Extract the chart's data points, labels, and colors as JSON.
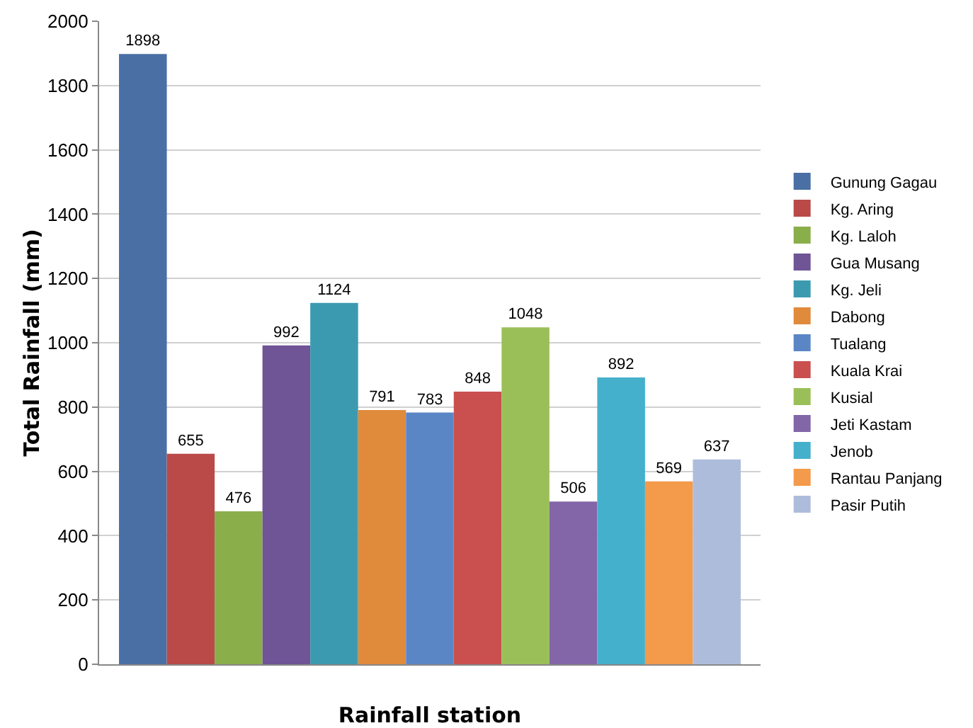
{
  "chart_data": {
    "type": "bar",
    "xlabel": "Rainfall station",
    "ylabel": "Total Rainfall (mm)",
    "categories": [
      null
    ],
    "series": [
      {
        "name": "Gunung Gagau",
        "color": "#4a6fa5",
        "values": [
          1898
        ]
      },
      {
        "name": "Kg. Aring",
        "color": "#b94a48",
        "values": [
          655
        ]
      },
      {
        "name": "Kg. Laloh",
        "color": "#8aae4a",
        "values": [
          476
        ]
      },
      {
        "name": "Gua Musang",
        "color": "#6f5496",
        "values": [
          992
        ]
      },
      {
        "name": "Kg. Jeli",
        "color": "#3c9ab0",
        "values": [
          1124
        ]
      },
      {
        "name": "Dabong",
        "color": "#e08a3c",
        "values": [
          791
        ]
      },
      {
        "name": "Tualang",
        "color": "#5b86c5",
        "values": [
          783
        ]
      },
      {
        "name": "Kuala Krai",
        "color": "#c9504e",
        "values": [
          848
        ]
      },
      {
        "name": "Kusial",
        "color": "#9bbf58",
        "values": [
          1048
        ]
      },
      {
        "name": "Jeti Kastam",
        "color": "#8266a8",
        "values": [
          506
        ]
      },
      {
        "name": "Jenob",
        "color": "#45b0cc",
        "values": [
          892
        ]
      },
      {
        "name": "Rantau Panjang",
        "color": "#f39a4b",
        "values": [
          569
        ]
      },
      {
        "name": "Pasir Putih",
        "color": "#aebcdc",
        "values": [
          637
        ]
      }
    ],
    "ylim": [
      0,
      2000
    ],
    "yticks": [
      0,
      200,
      400,
      600,
      800,
      1000,
      1200,
      1400,
      1600,
      1800,
      2000
    ],
    "grid": "y",
    "legend": "right",
    "data_labels": true
  }
}
